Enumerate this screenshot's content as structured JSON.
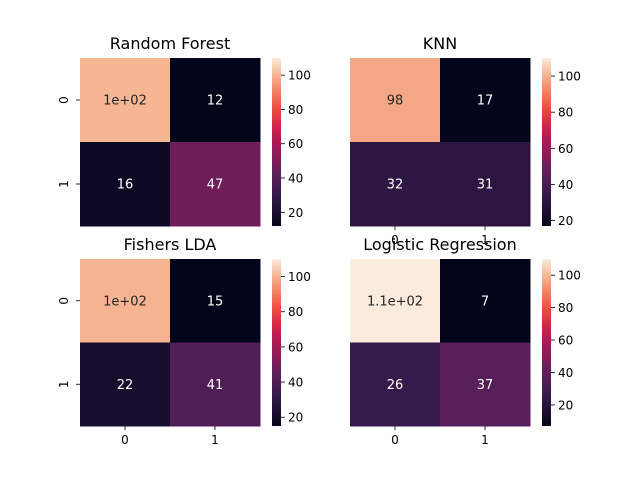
{
  "chart_data": [
    {
      "type": "heatmap",
      "title": "Random Forest",
      "rows": [
        "0",
        "1"
      ],
      "columns": [
        "0",
        "1"
      ],
      "values": [
        [
          100,
          12
        ],
        [
          16,
          47
        ]
      ],
      "annotations": [
        [
          "1e+02",
          "12"
        ],
        [
          "16",
          "47"
        ]
      ],
      "show_row_ticks": true,
      "show_col_ticks": false,
      "colorbar": {
        "ticks": [
          20,
          40,
          60,
          80,
          100
        ],
        "range": [
          12,
          110
        ]
      }
    },
    {
      "type": "heatmap",
      "title": "KNN",
      "rows": [
        "0",
        "1"
      ],
      "columns": [
        "0",
        "1"
      ],
      "values": [
        [
          98,
          17
        ],
        [
          32,
          31
        ]
      ],
      "annotations": [
        [
          "98",
          "17"
        ],
        [
          "32",
          "31"
        ]
      ],
      "show_row_ticks": false,
      "show_col_ticks": true,
      "colorbar": {
        "ticks": [
          20,
          40,
          60,
          80,
          100
        ],
        "range": [
          17,
          110
        ]
      }
    },
    {
      "type": "heatmap",
      "title": "Fishers LDA",
      "rows": [
        "0",
        "1"
      ],
      "columns": [
        "0",
        "1"
      ],
      "values": [
        [
          100,
          15
        ],
        [
          22,
          41
        ]
      ],
      "annotations": [
        [
          "1e+02",
          "15"
        ],
        [
          "22",
          "41"
        ]
      ],
      "show_row_ticks": true,
      "show_col_ticks": true,
      "colorbar": {
        "ticks": [
          20,
          40,
          60,
          80,
          100
        ],
        "range": [
          15,
          110
        ]
      }
    },
    {
      "type": "heatmap",
      "title": "Logistic Regression",
      "rows": [
        "0",
        "1"
      ],
      "columns": [
        "0",
        "1"
      ],
      "values": [
        [
          110,
          7
        ],
        [
          26,
          37
        ]
      ],
      "annotations": [
        [
          "1.1e+02",
          "7"
        ],
        [
          "26",
          "37"
        ]
      ],
      "show_row_ticks": false,
      "show_col_ticks": true,
      "colorbar": {
        "ticks": [
          20,
          40,
          60,
          80,
          100
        ],
        "range": [
          7,
          110
        ]
      }
    }
  ],
  "colormap": "rocket"
}
